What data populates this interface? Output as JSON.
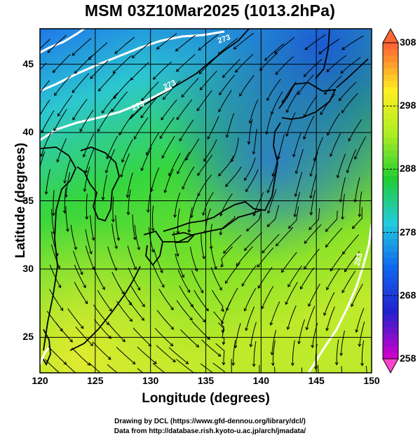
{
  "title": "MSM 03Z10Mar2025 (1013.2hPa)",
  "axes": {
    "xlabel": "Longitude (degrees)",
    "ylabel": "Latitude  (degrees)",
    "x_range": [
      120,
      150
    ],
    "y_range": [
      22.4,
      47.6
    ],
    "x_ticks": [
      "120",
      "125",
      "130",
      "135",
      "140",
      "145",
      "150"
    ],
    "y_ticks": [
      "25",
      "30",
      "35",
      "40",
      "45"
    ],
    "grid": true
  },
  "colorbar": {
    "range": [
      258,
      308
    ],
    "ticks": [
      "258",
      "268",
      "278",
      "288",
      "298",
      "308"
    ],
    "colors": [
      "#cc00cc",
      "#2222cc",
      "#1166ee",
      "#22ccdd",
      "#22cc33",
      "#aaee22",
      "#ffee22",
      "#ff6633"
    ]
  },
  "contour_labels": [
    "273",
    "273",
    "273",
    "283"
  ],
  "credits": {
    "line1": "Drawing by DCL (https://www.gfd-dennou.org/library/dcl/)",
    "line2": "Data from http://database.rish.kyoto-u.ac.jp/arch/jmadata/"
  }
}
